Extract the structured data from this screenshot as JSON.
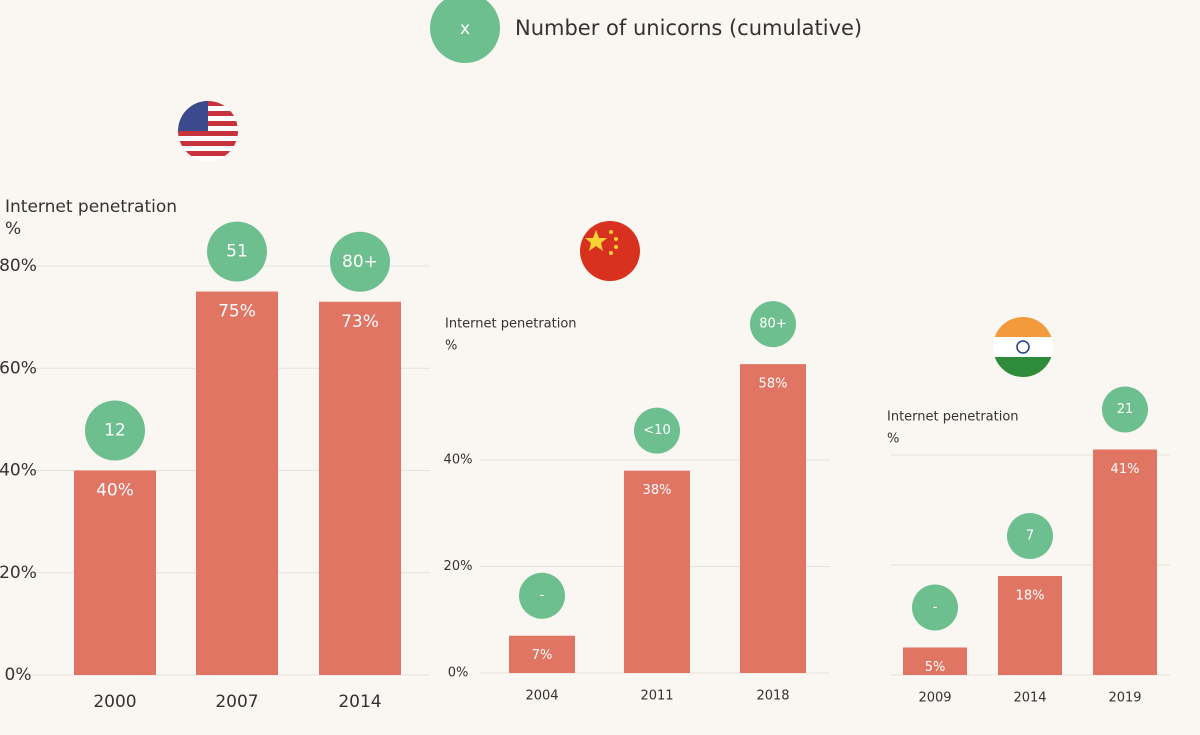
{
  "legend": {
    "symbol": "x",
    "text": "Number of unicorns (cumulative)",
    "color": "#6dbf8f"
  },
  "chart_data": [
    {
      "type": "bar",
      "y_label": [
        "Internet penetration",
        "%"
      ],
      "categories": [
        "2000",
        "2007",
        "2014"
      ],
      "values": [
        40,
        75,
        73
      ],
      "value_labels": [
        "40%",
        "75%",
        "73%"
      ],
      "unicorn_labels": [
        "12",
        "51",
        "80+"
      ],
      "color": "#e07563",
      "bubble_color": "#6dbf8f",
      "ylim": [
        0,
        80
      ],
      "yticks": [
        {
          "value": 0,
          "label": "0%"
        },
        {
          "value": 20,
          "label": "20%"
        },
        {
          "value": 40,
          "label": "40%"
        },
        {
          "value": 60,
          "label": "60%"
        },
        {
          "value": 80,
          "label": "80%"
        }
      ],
      "grid": true,
      "tick_labels": true
    },
    {
      "type": "bar",
      "y_label": [
        "Internet penetration",
        "%"
      ],
      "categories": [
        "2004",
        "2011",
        "2018"
      ],
      "values": [
        7,
        38,
        58
      ],
      "value_labels": [
        "7%",
        "38%",
        "58%"
      ],
      "unicorn_labels": [
        "-",
        "<10",
        "80+"
      ],
      "color": "#e07563",
      "bubble_color": "#6dbf8f",
      "ylim": [
        0,
        40
      ],
      "yticks": [
        {
          "value": 0,
          "label": "0%"
        },
        {
          "value": 20,
          "label": "20%"
        },
        {
          "value": 40,
          "label": "40%"
        }
      ],
      "grid": true,
      "tick_labels": true
    },
    {
      "type": "bar",
      "y_label": [
        "Internet penetration",
        "%"
      ],
      "categories": [
        "2009",
        "2014",
        "2019"
      ],
      "values": [
        5,
        18,
        41
      ],
      "value_labels": [
        "5%",
        "18%",
        "41%"
      ],
      "unicorn_labels": [
        "-",
        "7",
        "21"
      ],
      "color": "#e07563",
      "bubble_color": "#6dbf8f",
      "ylim": [
        0,
        40
      ],
      "yticks": [
        0,
        20,
        40
      ],
      "grid": true,
      "tick_labels": false
    }
  ]
}
